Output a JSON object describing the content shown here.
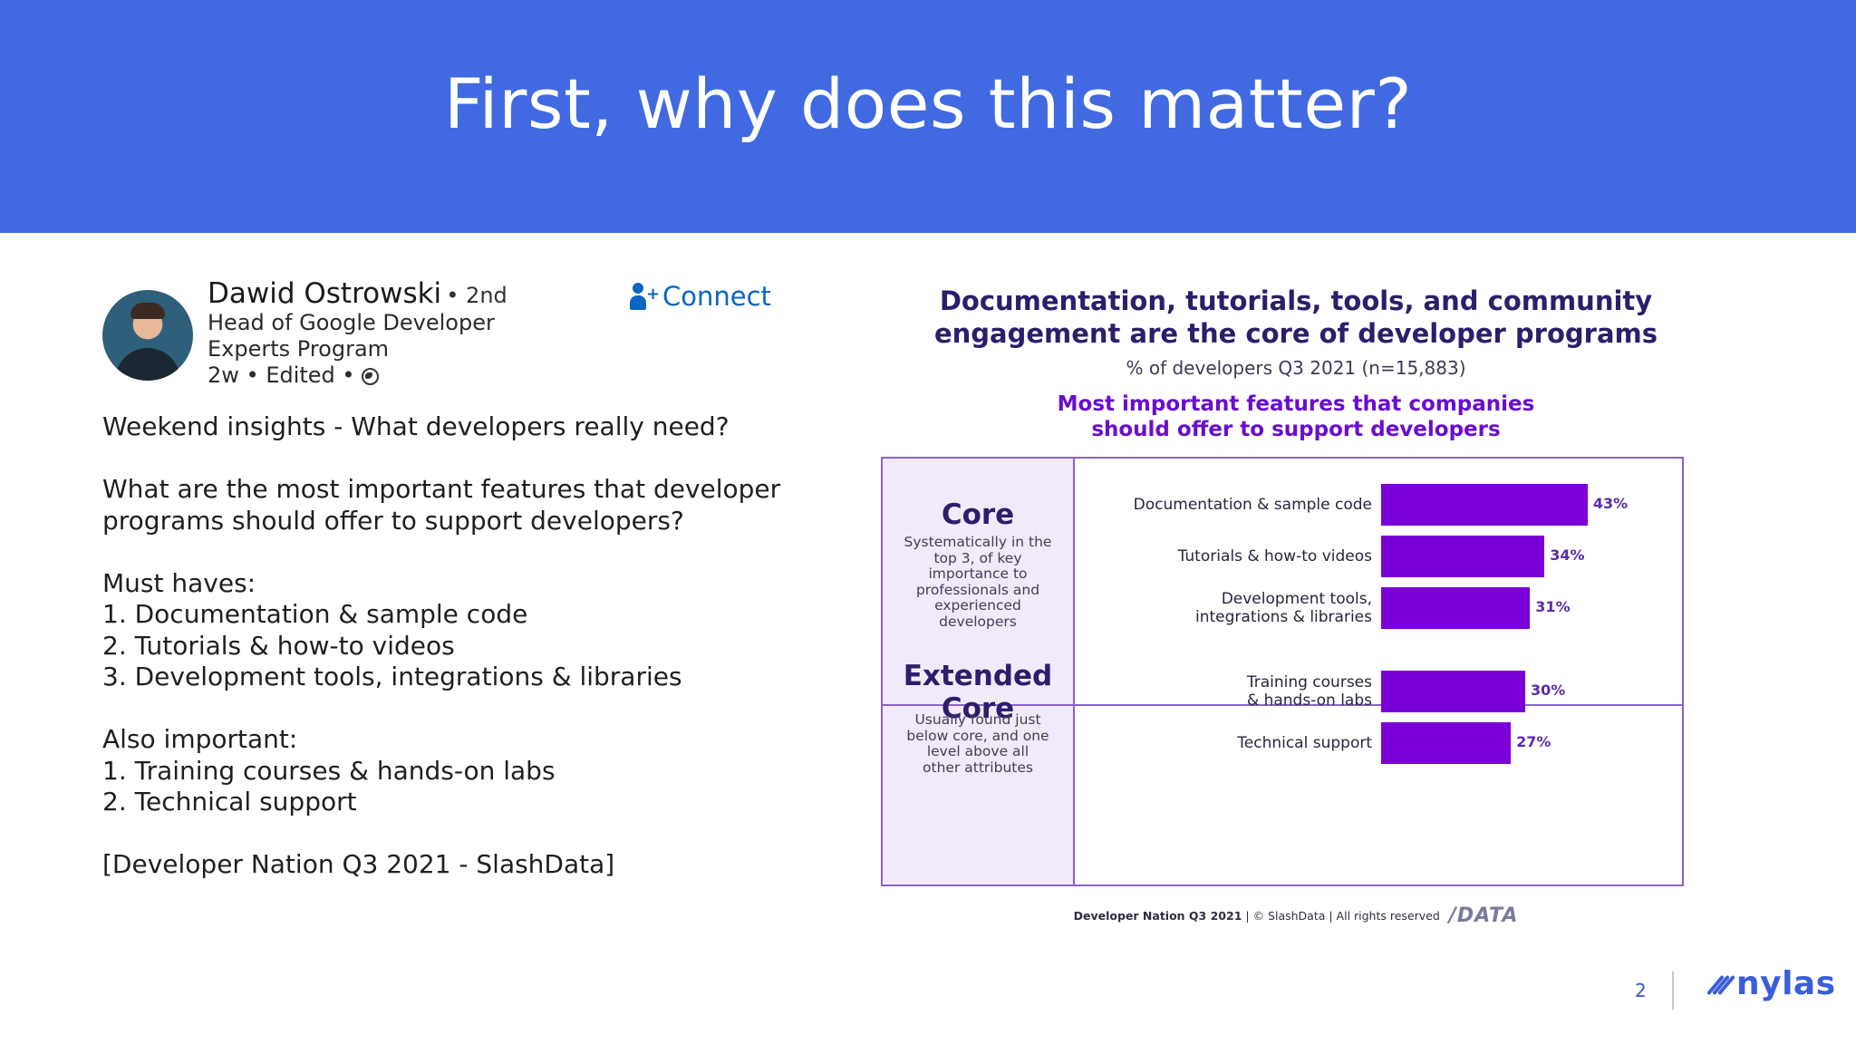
{
  "slide": {
    "title": "First, why does this matter?",
    "page_number": "2",
    "brand": "nylas"
  },
  "post": {
    "author_name": "Dawid Ostrowski",
    "degree": "• 2nd",
    "headline_line1": "Head of Google Developer",
    "headline_line2": "Experts Program",
    "meta": "2w • Edited •",
    "connect_label": "Connect",
    "body": [
      "Weekend insights - What developers really need?",
      "",
      "What are the most important features that developer",
      "programs should offer to support developers?",
      "",
      "Must haves:",
      "1. Documentation & sample code",
      "2. Tutorials & how-to videos",
      "3. Development tools, integrations & libraries",
      "",
      "Also important:",
      "1. Training courses & hands-on labs",
      "2. Technical support",
      "",
      "[Developer Nation Q3 2021 - SlashData]"
    ]
  },
  "chart_data": {
    "type": "bar",
    "orientation": "horizontal",
    "title_line1": "Documentation, tutorials, tools, and community",
    "title_line2": "engagement are the core of developer programs",
    "subtitle": "% of developers Q3 2021 (n=15,883)",
    "subhead_line1": "Most important features that companies",
    "subhead_line2": "should offer to support developers",
    "xlim": [
      0,
      50
    ],
    "groups": [
      {
        "name_line1": "Core",
        "name_line2": "",
        "desc_lines": [
          "Systematically in the",
          "top 3, of key",
          "importance to",
          "professionals and",
          "experienced",
          "developers"
        ],
        "items": [
          {
            "label_lines": [
              "Documentation & sample code"
            ],
            "value": 43,
            "value_label": "43%"
          },
          {
            "label_lines": [
              "Tutorials & how-to videos"
            ],
            "value": 34,
            "value_label": "34%"
          },
          {
            "label_lines": [
              "Development tools,",
              "integrations & libraries"
            ],
            "value": 31,
            "value_label": "31%"
          }
        ]
      },
      {
        "name_line1": "Extended",
        "name_line2": "Core",
        "desc_lines": [
          "Usually found just",
          "below core, and one",
          "level above all",
          "other attributes"
        ],
        "items": [
          {
            "label_lines": [
              "Training courses",
              "& hands-on labs"
            ],
            "value": 30,
            "value_label": "30%"
          },
          {
            "label_lines": [
              "Technical support"
            ],
            "value": 27,
            "value_label": "27%"
          }
        ]
      }
    ],
    "bar_color": "#7b00d8",
    "footer_source": "Developer Nation Q3 2021",
    "footer_rights": " | © SlashData | All rights reserved",
    "footer_logo": "/DATA"
  },
  "colors": {
    "header_bg": "#4169e1",
    "linkedin_blue": "#0a66c2",
    "chart_title": "#2c1e6a",
    "chart_accent": "#6a0dcf"
  },
  "icons": [
    "connect-person-plus-icon",
    "globe-icon",
    "nylas-logo-icon"
  ]
}
